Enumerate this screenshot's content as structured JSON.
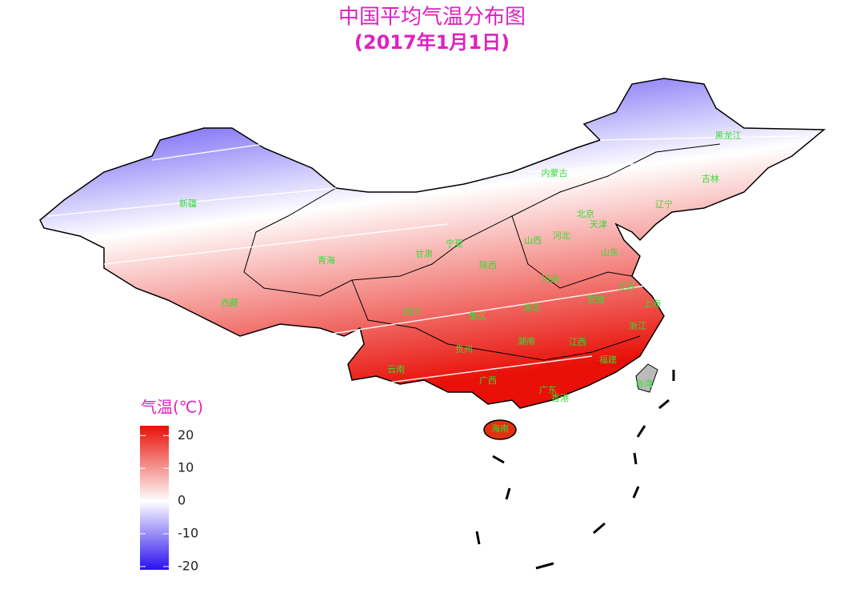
{
  "title": "中国平均气温分布图",
  "subtitle": "(2017年1月1日)",
  "legend": {
    "title": "气温(℃)",
    "lim": [
      -21,
      23
    ],
    "ticks": [
      20,
      10,
      0,
      -10,
      -20
    ],
    "colors": {
      "low": "#2a10f0",
      "mid": "#ffffff",
      "high": "#e81008"
    }
  },
  "regions": [
    "黑龙江",
    "吉林",
    "辽宁",
    "内蒙古",
    "新疆",
    "西藏",
    "青海",
    "甘肃",
    "宁夏",
    "陕西",
    "山西",
    "河北",
    "北京",
    "天津",
    "山东",
    "河南",
    "江苏",
    "安徽",
    "上海",
    "湖北",
    "四川",
    "重庆",
    "浙江",
    "湖南",
    "江西",
    "贵州",
    "福建",
    "云南",
    "广西",
    "广东",
    "香港",
    "台湾",
    "海南"
  ]
}
